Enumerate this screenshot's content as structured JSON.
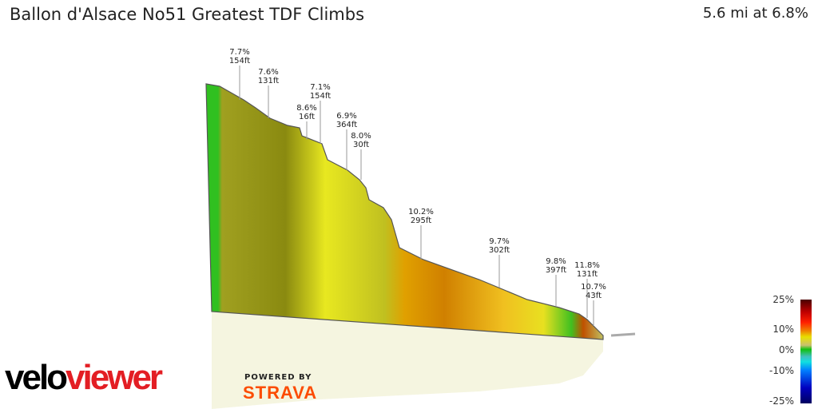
{
  "header": {
    "title": "Ballon d'Alsace No51 Greatest TDF Climbs",
    "summary": "5.6 mi at 6.8%"
  },
  "chart_data": {
    "type": "area",
    "title": "Ballon d'Alsace No51 Greatest TDF Climbs",
    "annotations": [
      {
        "grade": "7.7%",
        "length": "154ft"
      },
      {
        "grade": "7.6%",
        "length": "131ft"
      },
      {
        "grade": "8.6%",
        "length": "16ft"
      },
      {
        "grade": "7.1%",
        "length": "154ft"
      },
      {
        "grade": "6.9%",
        "length": "364ft"
      },
      {
        "grade": "8.0%",
        "length": "30ft"
      },
      {
        "grade": "10.2%",
        "length": "295ft"
      },
      {
        "grade": "9.7%",
        "length": "302ft"
      },
      {
        "grade": "9.8%",
        "length": "397ft"
      },
      {
        "grade": "11.8%",
        "length": "131ft"
      },
      {
        "grade": "10.7%",
        "length": "43ft"
      }
    ],
    "legend": {
      "ticks": [
        "25%",
        "10%",
        "0%",
        "-10%",
        "-25%"
      ]
    }
  },
  "branding": {
    "logo_velo": "velo",
    "logo_viewer": "viewer",
    "powered": "POWERED BY",
    "strava": "STRAVA"
  }
}
